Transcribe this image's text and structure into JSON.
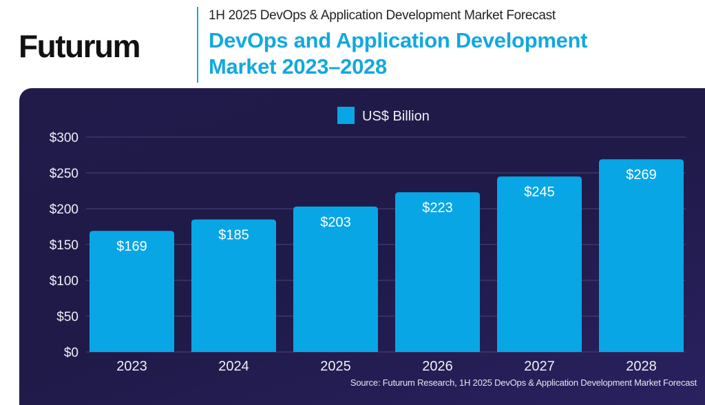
{
  "header": {
    "logo": "Futurum",
    "subtitle": "1H 2025 DevOps & Application Development Market Forecast",
    "title_line1": "DevOps and Application Development",
    "title_line2": "Market 2023–2028"
  },
  "colors": {
    "bar": "#09a6e6",
    "title": "#12a8e0",
    "panel": "#201b4a"
  },
  "chart_data": {
    "type": "bar",
    "categories": [
      "2023",
      "2024",
      "2025",
      "2026",
      "2027",
      "2028"
    ],
    "series": [
      {
        "name": "US$ Billion",
        "values": [
          169,
          185,
          203,
          223,
          245,
          269
        ]
      }
    ],
    "data_labels": [
      "$169",
      "$185",
      "$203",
      "$223",
      "$245",
      "$269"
    ],
    "yticks": [
      0,
      50,
      100,
      150,
      200,
      250,
      300
    ],
    "ytick_labels": [
      "$0",
      "$50",
      "$100",
      "$150",
      "$200",
      "$250",
      "$300"
    ],
    "ylim": [
      0,
      300
    ],
    "grid": true,
    "legend": "top-center"
  },
  "source": "Source: Futurum Research, 1H 2025 DevOps & Application Development Market Forecast"
}
